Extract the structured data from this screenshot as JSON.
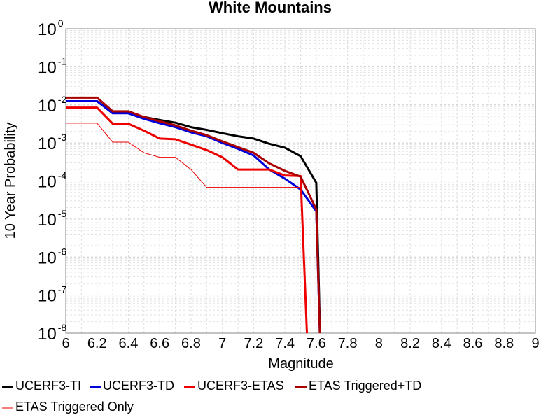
{
  "chart_data": {
    "type": "line",
    "title": "White Mountains",
    "xlabel": "Magnitude",
    "ylabel": "10 Year Probability",
    "xlim": [
      6,
      9
    ],
    "ylim": [
      1e-08,
      1
    ],
    "yscale": "log",
    "grid": true,
    "legend_position": "bottom",
    "x_ticks": [
      "6",
      "6.2",
      "6.4",
      "6.6",
      "6.8",
      "7",
      "7.2",
      "7.4",
      "7.6",
      "7.8",
      "8",
      "8.2",
      "8.4",
      "8.6",
      "8.8",
      "9"
    ],
    "y_ticks": [
      {
        "base": "10",
        "exp": "0"
      },
      {
        "base": "10",
        "exp": "-1"
      },
      {
        "base": "10",
        "exp": "-2"
      },
      {
        "base": "10",
        "exp": "-3"
      },
      {
        "base": "10",
        "exp": "-4"
      },
      {
        "base": "10",
        "exp": "-5"
      },
      {
        "base": "10",
        "exp": "-6"
      },
      {
        "base": "10",
        "exp": "-7"
      },
      {
        "base": "10",
        "exp": "-8"
      }
    ],
    "series": [
      {
        "name": "UCERF3-TI",
        "color": "#000000",
        "width": 3,
        "points": [
          [
            6.0,
            0.0125
          ],
          [
            6.1,
            0.0125
          ],
          [
            6.2,
            0.0125
          ],
          [
            6.3,
            0.0062
          ],
          [
            6.4,
            0.0062
          ],
          [
            6.5,
            0.0048
          ],
          [
            6.6,
            0.004
          ],
          [
            6.7,
            0.0034
          ],
          [
            6.8,
            0.0026
          ],
          [
            6.9,
            0.0022
          ],
          [
            7.0,
            0.0018
          ],
          [
            7.1,
            0.0015
          ],
          [
            7.2,
            0.0013
          ],
          [
            7.3,
            0.00095
          ],
          [
            7.4,
            0.00075
          ],
          [
            7.5,
            0.00045
          ],
          [
            7.6,
            9e-05
          ],
          [
            7.63,
            1e-09
          ]
        ]
      },
      {
        "name": "UCERF3-TD",
        "color": "#0000dd",
        "width": 3,
        "points": [
          [
            6.0,
            0.0125
          ],
          [
            6.1,
            0.0125
          ],
          [
            6.2,
            0.0125
          ],
          [
            6.3,
            0.006
          ],
          [
            6.4,
            0.006
          ],
          [
            6.5,
            0.0043
          ],
          [
            6.6,
            0.0033
          ],
          [
            6.7,
            0.0026
          ],
          [
            6.8,
            0.0019
          ],
          [
            6.9,
            0.0015
          ],
          [
            7.0,
            0.001
          ],
          [
            7.1,
            0.0007
          ],
          [
            7.2,
            0.00047
          ],
          [
            7.3,
            0.0002
          ],
          [
            7.4,
            0.000115
          ],
          [
            7.5,
            6e-05
          ],
          [
            7.6,
            1.6e-05
          ],
          [
            7.63,
            1e-09
          ]
        ]
      },
      {
        "name": "UCERF3-ETAS",
        "color": "#ee0000",
        "width": 3,
        "points": [
          [
            6.0,
            0.0085
          ],
          [
            6.1,
            0.0085
          ],
          [
            6.2,
            0.0085
          ],
          [
            6.3,
            0.0032
          ],
          [
            6.4,
            0.0032
          ],
          [
            6.5,
            0.0021
          ],
          [
            6.6,
            0.0013
          ],
          [
            6.7,
            0.00125
          ],
          [
            6.8,
            0.0009
          ],
          [
            6.9,
            0.00065
          ],
          [
            7.0,
            0.00042
          ],
          [
            7.1,
            0.0002
          ],
          [
            7.2,
            0.0002
          ],
          [
            7.3,
            0.0002
          ],
          [
            7.4,
            0.00014
          ],
          [
            7.5,
            0.000135
          ],
          [
            7.55,
            1e-09
          ]
        ]
      },
      {
        "name": "ETAS Triggered+TD",
        "color": "#aa0000",
        "width": 3,
        "points": [
          [
            6.0,
            0.0155
          ],
          [
            6.1,
            0.0155
          ],
          [
            6.2,
            0.0155
          ],
          [
            6.3,
            0.0068
          ],
          [
            6.4,
            0.0068
          ],
          [
            6.5,
            0.0048
          ],
          [
            6.6,
            0.0037
          ],
          [
            6.7,
            0.0029
          ],
          [
            6.8,
            0.0021
          ],
          [
            6.9,
            0.0016
          ],
          [
            7.0,
            0.0011
          ],
          [
            7.1,
            0.00078
          ],
          [
            7.2,
            0.00055
          ],
          [
            7.3,
            0.00029
          ],
          [
            7.4,
            0.000185
          ],
          [
            7.5,
            0.00013
          ],
          [
            7.6,
            1.8e-05
          ],
          [
            7.63,
            1e-09
          ]
        ]
      },
      {
        "name": "ETAS Triggered Only",
        "color": "#ee0000",
        "width": 1,
        "points": [
          [
            6.0,
            0.0033
          ],
          [
            6.1,
            0.0033
          ],
          [
            6.2,
            0.0033
          ],
          [
            6.3,
            0.00105
          ],
          [
            6.4,
            0.00105
          ],
          [
            6.5,
            0.00055
          ],
          [
            6.6,
            0.00042
          ],
          [
            6.7,
            0.00042
          ],
          [
            6.8,
            0.0002
          ],
          [
            6.9,
            6.8e-05
          ],
          [
            7.0,
            6.8e-05
          ],
          [
            7.1,
            6.8e-05
          ],
          [
            7.2,
            6.8e-05
          ],
          [
            7.3,
            6.8e-05
          ],
          [
            7.4,
            6.8e-05
          ],
          [
            7.5,
            6.8e-05
          ]
        ]
      }
    ]
  }
}
